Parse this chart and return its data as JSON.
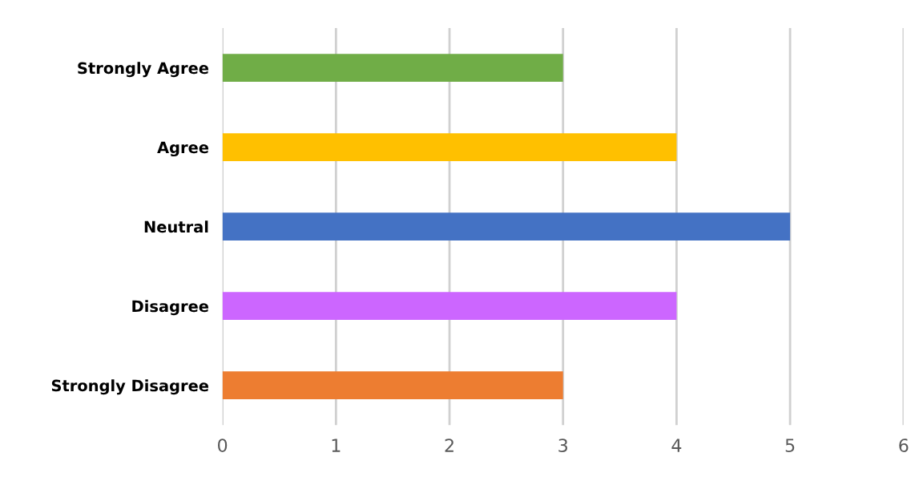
{
  "chart_data": {
    "type": "bar",
    "orientation": "horizontal",
    "categories": [
      "Strongly Agree",
      "Agree",
      "Neutral",
      "Disagree",
      "Strongly Disagree"
    ],
    "values": [
      3,
      4,
      5,
      4,
      3
    ],
    "colors": [
      "#70ad47",
      "#ffc000",
      "#4472c4",
      "#cc66ff",
      "#ed7d31"
    ],
    "xlim": [
      0,
      6
    ],
    "xticks": [
      0,
      1,
      2,
      3,
      4,
      5,
      6
    ],
    "grid": "x",
    "legend": false
  }
}
